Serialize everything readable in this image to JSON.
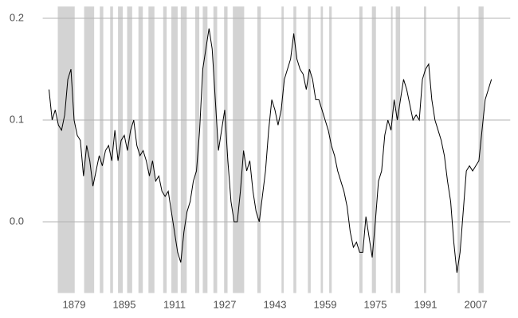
{
  "chart_data": {
    "type": "line",
    "x": [
      1871,
      1872,
      1873,
      1874,
      1875,
      1876,
      1877,
      1878,
      1879,
      1880,
      1881,
      1882,
      1883,
      1884,
      1885,
      1886,
      1887,
      1888,
      1889,
      1890,
      1891,
      1892,
      1893,
      1894,
      1895,
      1896,
      1897,
      1898,
      1899,
      1900,
      1901,
      1902,
      1903,
      1904,
      1905,
      1906,
      1907,
      1908,
      1909,
      1910,
      1911,
      1912,
      1913,
      1914,
      1915,
      1916,
      1917,
      1918,
      1919,
      1920,
      1921,
      1922,
      1923,
      1924,
      1925,
      1926,
      1927,
      1928,
      1929,
      1930,
      1931,
      1932,
      1933,
      1934,
      1935,
      1936,
      1937,
      1938,
      1939,
      1940,
      1941,
      1942,
      1943,
      1944,
      1945,
      1946,
      1947,
      1948,
      1949,
      1950,
      1951,
      1952,
      1953,
      1954,
      1955,
      1956,
      1957,
      1958,
      1959,
      1960,
      1961,
      1962,
      1963,
      1964,
      1965,
      1966,
      1967,
      1968,
      1969,
      1970,
      1971,
      1972,
      1973,
      1974,
      1975,
      1976,
      1977,
      1978,
      1979,
      1980,
      1981,
      1982,
      1983,
      1984,
      1985,
      1986,
      1987,
      1988,
      1989,
      1990,
      1991,
      1992,
      1993,
      1994,
      1995,
      1996,
      1997,
      1998,
      1999,
      2000,
      2001,
      2002,
      2003,
      2004,
      2005,
      2006,
      2007,
      2008,
      2009,
      2010,
      2011,
      2012
    ],
    "values": [
      0.13,
      0.1,
      0.11,
      0.095,
      0.09,
      0.105,
      0.14,
      0.15,
      0.1,
      0.085,
      0.08,
      0.045,
      0.075,
      0.06,
      0.035,
      0.05,
      0.065,
      0.055,
      0.07,
      0.075,
      0.06,
      0.09,
      0.06,
      0.08,
      0.085,
      0.07,
      0.09,
      0.1,
      0.075,
      0.065,
      0.07,
      0.06,
      0.045,
      0.06,
      0.04,
      0.045,
      0.03,
      0.025,
      0.03,
      0.01,
      -0.01,
      -0.03,
      -0.04,
      -0.01,
      0.01,
      0.02,
      0.04,
      0.05,
      0.09,
      0.15,
      0.17,
      0.19,
      0.17,
      0.12,
      0.07,
      0.09,
      0.11,
      0.06,
      0.02,
      0.0,
      0.0,
      0.03,
      0.07,
      0.05,
      0.06,
      0.03,
      0.01,
      0.0,
      0.025,
      0.05,
      0.09,
      0.12,
      0.11,
      0.095,
      0.11,
      0.14,
      0.15,
      0.16,
      0.185,
      0.16,
      0.15,
      0.145,
      0.13,
      0.15,
      0.14,
      0.12,
      0.12,
      0.11,
      0.1,
      0.09,
      0.075,
      0.065,
      0.05,
      0.04,
      0.03,
      0.015,
      -0.01,
      -0.025,
      -0.02,
      -0.03,
      -0.03,
      0.005,
      -0.015,
      -0.035,
      0.0,
      0.04,
      0.05,
      0.085,
      0.1,
      0.09,
      0.12,
      0.1,
      0.12,
      0.14,
      0.13,
      0.115,
      0.1,
      0.105,
      0.1,
      0.14,
      0.15,
      0.155,
      0.12,
      0.1,
      0.09,
      0.08,
      0.065,
      0.04,
      0.02,
      -0.02,
      -0.05,
      -0.03,
      0.01,
      0.05,
      0.055,
      0.05,
      0.055,
      0.06,
      0.09,
      0.12,
      0.13,
      0.14
    ],
    "color": "#000000",
    "shaded_periods": [
      [
        1873.8,
        1879.2
      ],
      [
        1882.2,
        1885.4
      ],
      [
        1887.2,
        1888.3
      ],
      [
        1890.5,
        1891.4
      ],
      [
        1893.0,
        1894.5
      ],
      [
        1895.9,
        1897.5
      ],
      [
        1899.5,
        1900.9
      ],
      [
        1902.7,
        1904.6
      ],
      [
        1907.4,
        1908.5
      ],
      [
        1910.0,
        1912.0
      ],
      [
        1913.0,
        1914.9
      ],
      [
        1917.6,
        1918.9
      ],
      [
        1920.0,
        1921.5
      ],
      [
        1923.4,
        1924.6
      ],
      [
        1926.8,
        1927.9
      ],
      [
        1929.6,
        1933.2
      ],
      [
        1937.4,
        1938.5
      ],
      [
        1945.1,
        1945.8
      ],
      [
        1948.9,
        1949.8
      ],
      [
        1953.5,
        1954.4
      ],
      [
        1957.6,
        1958.3
      ],
      [
        1960.3,
        1961.1
      ],
      [
        1969.9,
        1970.9
      ],
      [
        1973.9,
        1975.2
      ],
      [
        1980.0,
        1980.5
      ],
      [
        1981.5,
        1982.9
      ],
      [
        1990.5,
        1991.2
      ],
      [
        2001.2,
        2001.9
      ],
      [
        2007.9,
        2009.5
      ]
    ],
    "shade_color": "#d3d3d3",
    "xlim": [
      1869,
      2018
    ],
    "xticks": [
      1879,
      1895,
      1911,
      1927,
      1943,
      1959,
      1975,
      1991,
      2007
    ],
    "ylim": [
      -0.07,
      0.21
    ],
    "yticks": [
      {
        "value": 0,
        "label": "0.0"
      },
      0.1,
      0.2
    ],
    "grid": true
  }
}
